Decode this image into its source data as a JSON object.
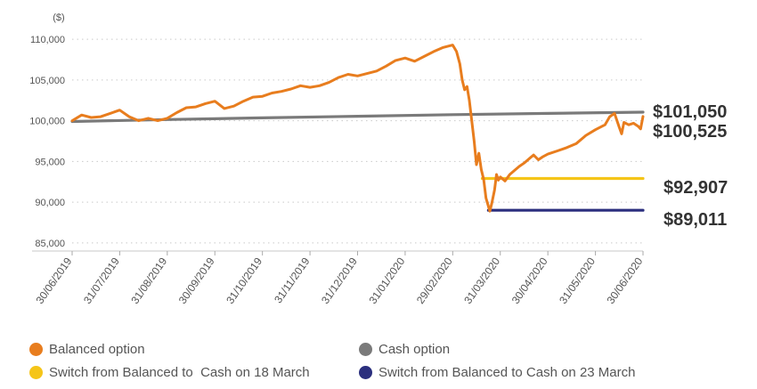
{
  "chart_data": {
    "type": "line",
    "unit_label": "($)",
    "y_ticks": [
      85000,
      90000,
      95000,
      100000,
      105000,
      110000
    ],
    "y_tick_labels": [
      "85,000",
      "90,000",
      "95,000",
      "100,000",
      "105,000",
      "110,000"
    ],
    "ylim": [
      84000,
      111000
    ],
    "x_tick_labels": [
      "30/06/2019",
      "31/07/2019",
      "31/08/2019",
      "30/09/2019",
      "31/10/2019",
      "31/11/2019",
      "31/12/2019",
      "31/01/2020",
      "29/02/2020",
      "31/03/2020",
      "30/04/2020",
      "31/05/2020",
      "30/06/2020"
    ],
    "grid": true,
    "legend_position": "bottom",
    "series": [
      {
        "name": "Balanced option",
        "color": "#E87D1E",
        "end_label": "$100,525",
        "points": [
          [
            0,
            100000
          ],
          [
            0.2,
            100700
          ],
          [
            0.4,
            100400
          ],
          [
            0.6,
            100500
          ],
          [
            0.8,
            100900
          ],
          [
            1,
            101300
          ],
          [
            1.2,
            100500
          ],
          [
            1.4,
            100000
          ],
          [
            1.6,
            100300
          ],
          [
            1.8,
            100000
          ],
          [
            2,
            100300
          ],
          [
            2.2,
            101000
          ],
          [
            2.4,
            101600
          ],
          [
            2.6,
            101700
          ],
          [
            2.8,
            102100
          ],
          [
            3,
            102400
          ],
          [
            3.2,
            101500
          ],
          [
            3.4,
            101800
          ],
          [
            3.6,
            102400
          ],
          [
            3.8,
            102900
          ],
          [
            4,
            103000
          ],
          [
            4.2,
            103400
          ],
          [
            4.4,
            103600
          ],
          [
            4.6,
            103900
          ],
          [
            4.8,
            104300
          ],
          [
            5,
            104100
          ],
          [
            5.2,
            104300
          ],
          [
            5.4,
            104700
          ],
          [
            5.6,
            105300
          ],
          [
            5.8,
            105700
          ],
          [
            6,
            105500
          ],
          [
            6.2,
            105800
          ],
          [
            6.4,
            106100
          ],
          [
            6.6,
            106700
          ],
          [
            6.8,
            107400
          ],
          [
            7,
            107700
          ],
          [
            7.2,
            107300
          ],
          [
            7.4,
            107900
          ],
          [
            7.6,
            108500
          ],
          [
            7.8,
            109000
          ],
          [
            8,
            109300
          ],
          [
            8.08,
            108500
          ],
          [
            8.15,
            107000
          ],
          [
            8.2,
            105000
          ],
          [
            8.25,
            103800
          ],
          [
            8.3,
            104200
          ],
          [
            8.35,
            102500
          ],
          [
            8.4,
            100000
          ],
          [
            8.45,
            97500
          ],
          [
            8.5,
            94600
          ],
          [
            8.55,
            96000
          ],
          [
            8.6,
            94000
          ],
          [
            8.65,
            92800
          ],
          [
            8.7,
            90500
          ],
          [
            8.75,
            89500
          ],
          [
            8.78,
            88900
          ],
          [
            8.82,
            89800
          ],
          [
            8.88,
            91500
          ],
          [
            8.92,
            93400
          ],
          [
            8.96,
            92700
          ],
          [
            9,
            93100
          ],
          [
            9.1,
            92600
          ],
          [
            9.2,
            93400
          ],
          [
            9.3,
            93900
          ],
          [
            9.4,
            94400
          ],
          [
            9.5,
            94800
          ],
          [
            9.6,
            95300
          ],
          [
            9.7,
            95800
          ],
          [
            9.8,
            95200
          ],
          [
            9.9,
            95600
          ],
          [
            10,
            95900
          ],
          [
            10.2,
            96300
          ],
          [
            10.4,
            96700
          ],
          [
            10.6,
            97200
          ],
          [
            10.8,
            98200
          ],
          [
            11,
            98900
          ],
          [
            11.2,
            99500
          ],
          [
            11.3,
            100500
          ],
          [
            11.4,
            100900
          ],
          [
            11.5,
            99200
          ],
          [
            11.55,
            98400
          ],
          [
            11.6,
            99800
          ],
          [
            11.7,
            99500
          ],
          [
            11.8,
            99700
          ],
          [
            11.9,
            99300
          ],
          [
            11.95,
            99000
          ],
          [
            12,
            100525
          ]
        ]
      },
      {
        "name": "Cash option",
        "color": "#7A7A7A",
        "end_label": "$101,050",
        "points": [
          [
            0,
            99900
          ],
          [
            2,
            100150
          ],
          [
            4,
            100350
          ],
          [
            6,
            100550
          ],
          [
            8,
            100750
          ],
          [
            10,
            100900
          ],
          [
            12,
            101050
          ]
        ]
      },
      {
        "name": "Switch from Balanced to  Cash on 18 March",
        "color": "#F5C518",
        "end_label": "$92,907",
        "points": [
          [
            8.62,
            92907
          ],
          [
            12,
            92907
          ]
        ]
      },
      {
        "name": "Switch from Balanced to Cash on 23 March",
        "color": "#2B2F7E",
        "end_label": "$89,011",
        "points": [
          [
            8.75,
            89011
          ],
          [
            12,
            89011
          ]
        ]
      }
    ]
  }
}
